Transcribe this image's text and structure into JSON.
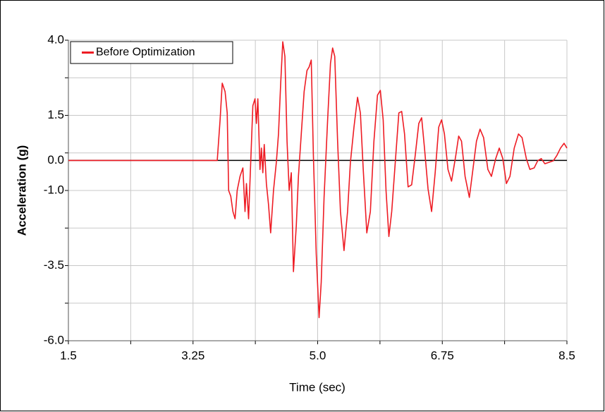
{
  "chart_data": {
    "type": "line",
    "xlabel": "Time (sec)",
    "ylabel": "Acceleration (g)",
    "series": [
      {
        "name": "Before Optimization",
        "color": "#ee1c24",
        "x": [
          1.5,
          3.59,
          3.63,
          3.66,
          3.7,
          3.73,
          3.75,
          3.78,
          3.81,
          3.84,
          3.87,
          3.91,
          3.95,
          3.98,
          4.0,
          4.03,
          4.06,
          4.09,
          4.12,
          4.14,
          4.16,
          4.19,
          4.21,
          4.23,
          4.25,
          4.28,
          4.31,
          4.34,
          4.38,
          4.42,
          4.45,
          4.48,
          4.51,
          4.54,
          4.57,
          4.6,
          4.63,
          4.66,
          4.7,
          4.73,
          4.77,
          4.81,
          4.85,
          4.88,
          4.91,
          4.94,
          4.98,
          5.02,
          5.05,
          5.09,
          5.14,
          5.18,
          5.21,
          5.24,
          5.28,
          5.32,
          5.37,
          5.42,
          5.46,
          5.51,
          5.56,
          5.6,
          5.64,
          5.69,
          5.74,
          5.79,
          5.84,
          5.88,
          5.92,
          5.96,
          6.0,
          6.04,
          6.09,
          6.14,
          6.18,
          6.22,
          6.27,
          6.32,
          6.37,
          6.42,
          6.46,
          6.5,
          6.55,
          6.6,
          6.65,
          6.7,
          6.74,
          6.78,
          6.83,
          6.88,
          6.94,
          6.98,
          7.02,
          7.07,
          7.13,
          7.18,
          7.23,
          7.28,
          7.33,
          7.39,
          7.44,
          7.5,
          7.55,
          7.6,
          7.65,
          7.7,
          7.76,
          7.82,
          7.87,
          7.93,
          7.98,
          8.04,
          8.09,
          8.14,
          8.19,
          8.25,
          8.31,
          8.36,
          8.41,
          8.46,
          8.5
        ],
        "values": [
          0,
          0,
          1.35,
          2.57,
          2.29,
          1.58,
          -1.0,
          -1.19,
          -1.7,
          -1.94,
          -1.0,
          -0.53,
          -0.25,
          -1.7,
          -0.77,
          -1.94,
          -0.06,
          1.82,
          2.05,
          1.23,
          2.05,
          -0.3,
          0.41,
          -0.41,
          0.53,
          -0.77,
          -1.47,
          -2.41,
          -1.0,
          -0.06,
          0.88,
          2.52,
          3.95,
          3.46,
          0.64,
          -1.0,
          -0.41,
          -3.7,
          -2.17,
          -0.53,
          0.88,
          2.29,
          2.99,
          3.11,
          3.34,
          0.17,
          -3.11,
          -5.23,
          -4.05,
          -1.23,
          1.35,
          3.23,
          3.74,
          3.46,
          0.64,
          -1.7,
          -3.0,
          -1.7,
          -0.06,
          1.11,
          2.1,
          1.58,
          -0.3,
          -2.41,
          -1.7,
          0.64,
          2.17,
          2.33,
          1.35,
          -1.0,
          -2.53,
          -1.7,
          -0.06,
          1.58,
          1.63,
          0.88,
          -0.88,
          -0.81,
          0.17,
          1.23,
          1.42,
          0.41,
          -0.95,
          -1.7,
          -0.41,
          1.11,
          1.35,
          0.88,
          -0.3,
          -0.69,
          0.17,
          0.81,
          0.64,
          -0.53,
          -1.23,
          -0.3,
          0.64,
          1.04,
          0.76,
          -0.3,
          -0.53,
          0.06,
          0.41,
          0.06,
          -0.77,
          -0.53,
          0.41,
          0.88,
          0.76,
          0.06,
          -0.3,
          -0.25,
          -0.01,
          0.06,
          -0.11,
          -0.06,
          -0.01,
          0.17,
          0.41,
          0.57,
          0.41
        ]
      }
    ],
    "xlim": [
      1.5,
      8.5
    ],
    "xticks": [
      1.5,
      3.25,
      {
        "value": 5,
        "label": "5.0"
      },
      6.75,
      8.5
    ],
    "xgrid": [
      1.5,
      2.375,
      3.25,
      4.125,
      5,
      5.875,
      6.75,
      7.625,
      8.5
    ],
    "ylim": [
      -6,
      4
    ],
    "yticks": [
      {
        "value": 4,
        "label": "4.0"
      },
      1.5,
      {
        "value": 0,
        "label": "0.0"
      },
      {
        "value": -1,
        "label": "-1.0"
      },
      -3.5,
      {
        "value": -6,
        "label": "-6.0"
      }
    ],
    "ygrid": [
      4,
      2.75,
      1.5,
      0.25,
      -1,
      -2.25,
      -3.5,
      -4.75,
      -6
    ],
    "zero_line": true,
    "grid": true,
    "legend": "upper left"
  }
}
